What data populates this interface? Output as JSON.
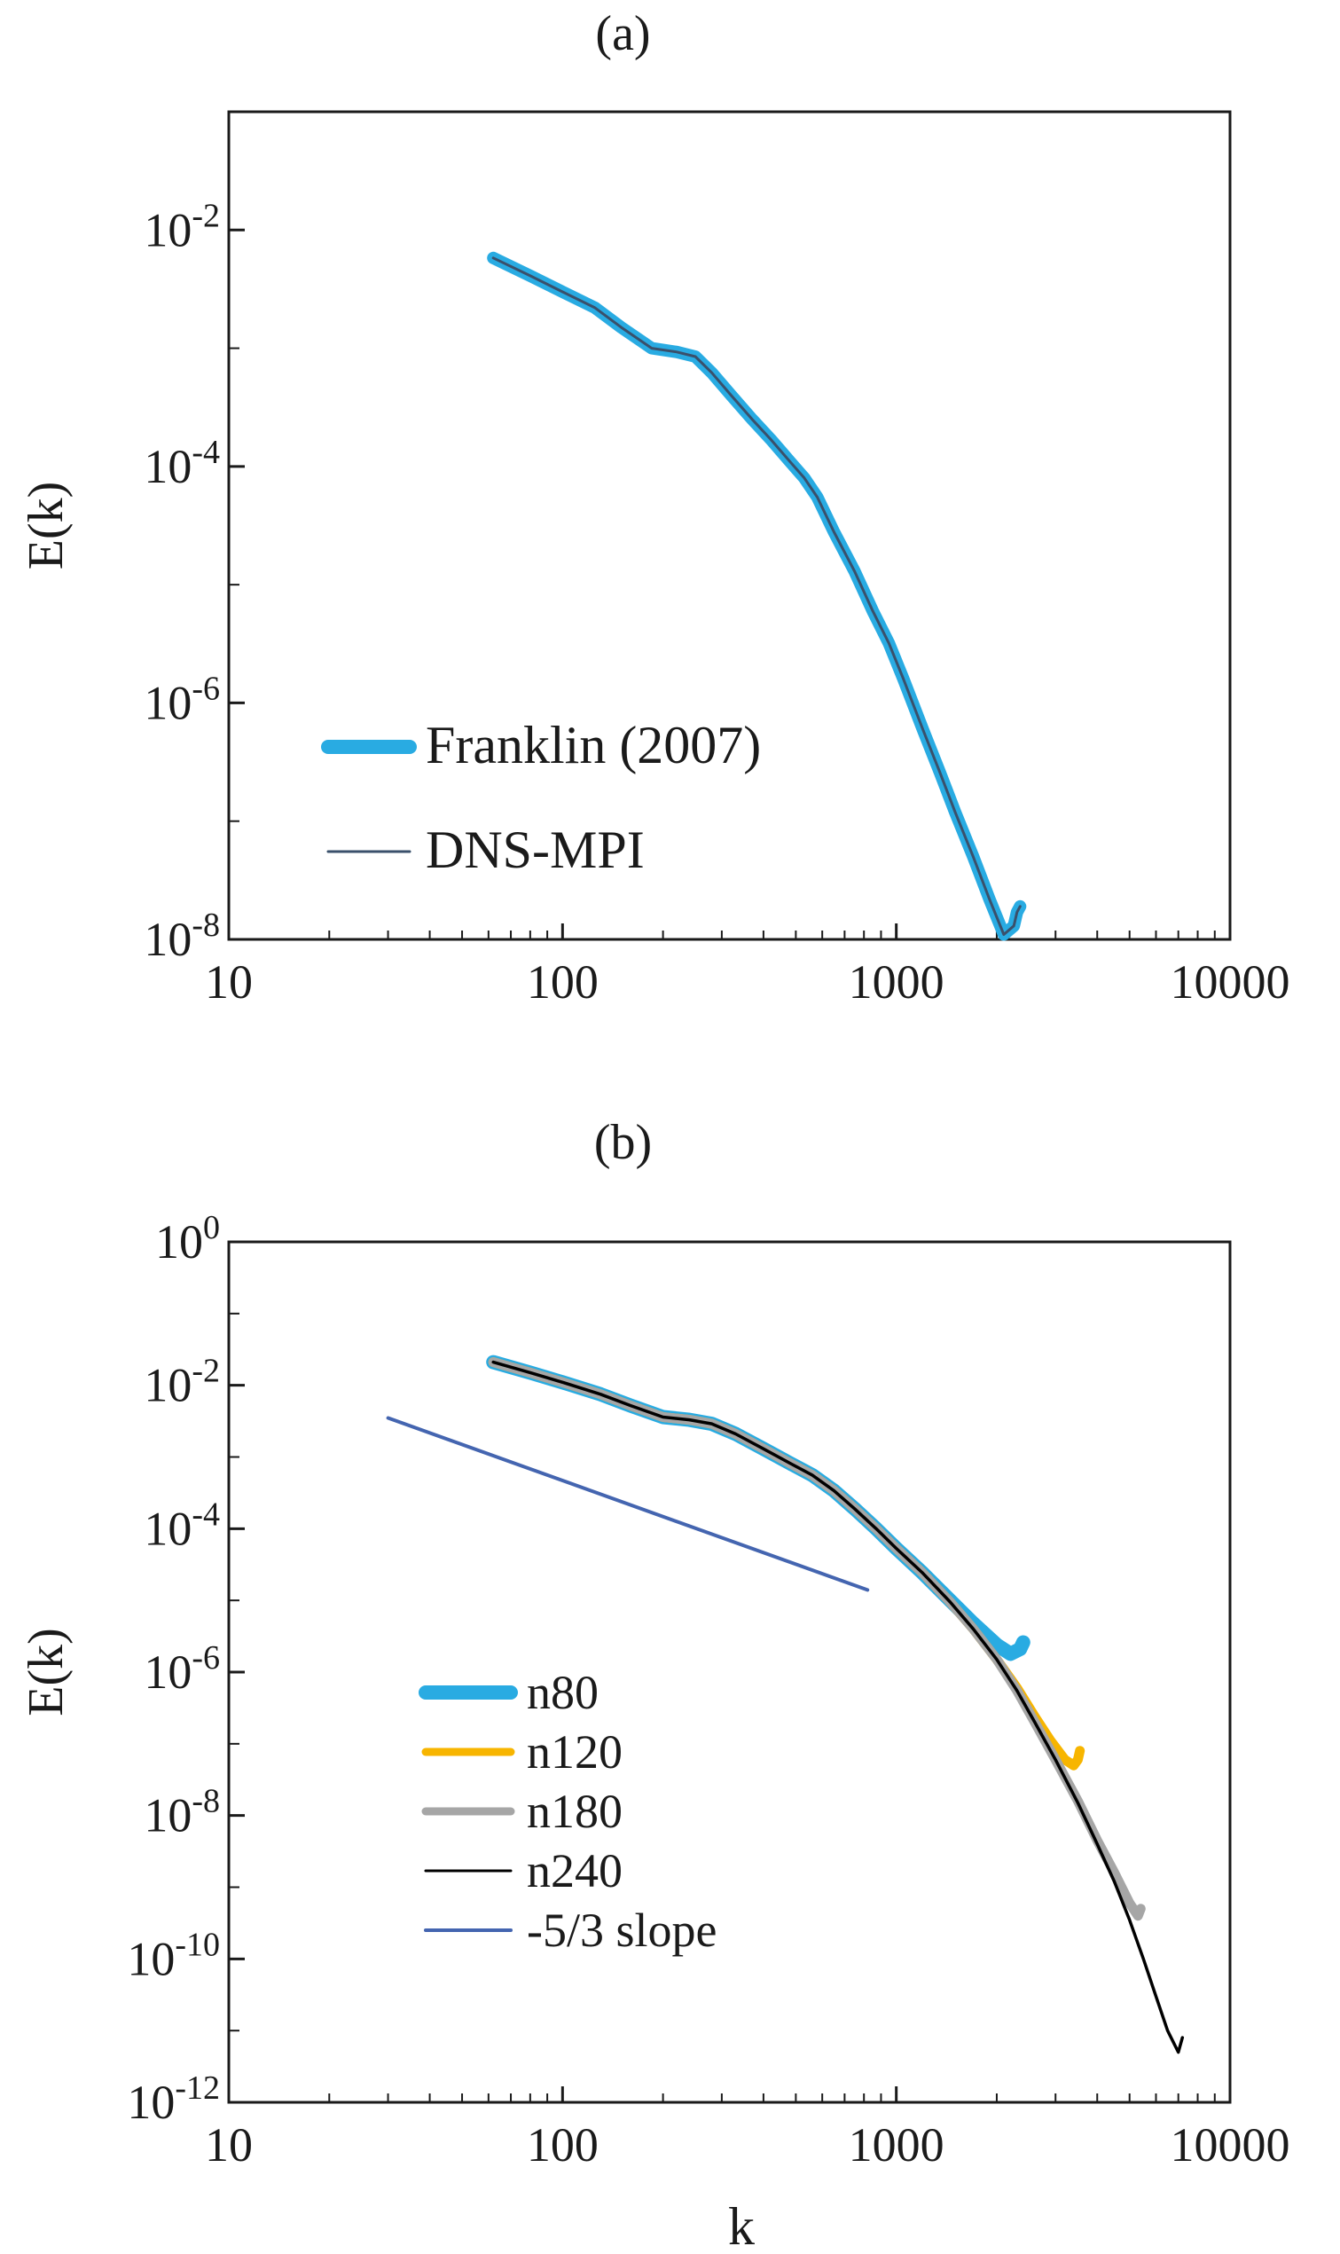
{
  "chart_data": [
    {
      "type": "line",
      "title": "(a)",
      "xlabel": "",
      "ylabel": "E(k)",
      "xscale": "log",
      "yscale": "log",
      "xlim": [
        10,
        10000
      ],
      "ylim": [
        1e-08,
        0.1
      ],
      "x_tick_labels": [
        "10",
        "100",
        "1000",
        "10000"
      ],
      "y_ticks": [
        {
          "base": "10",
          "exp": "-2"
        },
        {
          "base": "10",
          "exp": "-4"
        },
        {
          "base": "10",
          "exp": "-6"
        },
        {
          "base": "10",
          "exp": "-8"
        }
      ],
      "legend_placement": "lower-left",
      "series": [
        {
          "name": "Franklin (2007)",
          "color": "#29abe2",
          "x": [
            62,
            80,
            100,
            125,
            150,
            185,
            220,
            250,
            280,
            320,
            370,
            420,
            480,
            530,
            580,
            650,
            750,
            850,
            950,
            1050,
            1200,
            1350,
            1500,
            1700,
            1900,
            2100,
            2250,
            2300,
            2350
          ],
          "y": [
            0.0058,
            0.0041,
            0.003,
            0.0022,
            0.0015,
            0.001,
            0.00093,
            0.00085,
            0.00062,
            0.0004,
            0.00025,
            0.00017,
            0.00011,
            8e-05,
            5.5e-05,
            2.8e-05,
            1.3e-05,
            6e-06,
            3.2e-06,
            1.6e-06,
            6e-07,
            2.6e-07,
            1.2e-07,
            5e-08,
            2.2e-08,
            1.1e-08,
            1.3e-08,
            1.7e-08,
            1.9e-08
          ]
        },
        {
          "name": "DNS-MPI",
          "color": "#3a506b",
          "x": [
            62,
            80,
            100,
            125,
            150,
            185,
            220,
            250,
            280,
            320,
            370,
            420,
            480,
            530,
            580,
            650,
            750,
            850,
            950,
            1050,
            1200,
            1350,
            1500,
            1700,
            1900,
            2100,
            2250,
            2300,
            2350
          ],
          "y": [
            0.0058,
            0.0041,
            0.003,
            0.0022,
            0.0015,
            0.001,
            0.00093,
            0.00085,
            0.00062,
            0.0004,
            0.00025,
            0.00017,
            0.00011,
            8e-05,
            5.5e-05,
            2.8e-05,
            1.3e-05,
            6e-06,
            3.2e-06,
            1.6e-06,
            6e-07,
            2.6e-07,
            1.2e-07,
            5e-08,
            2.2e-08,
            1.1e-08,
            1.3e-08,
            1.7e-08,
            1.9e-08
          ]
        }
      ]
    },
    {
      "type": "line",
      "title": "(b)",
      "xlabel": "k",
      "ylabel": "E(k)",
      "xscale": "log",
      "yscale": "log",
      "xlim": [
        10,
        10000
      ],
      "ylim": [
        1e-12,
        1
      ],
      "x_tick_labels": [
        "10",
        "100",
        "1000",
        "10000"
      ],
      "y_ticks": [
        {
          "base": "10",
          "exp": "0"
        },
        {
          "base": "10",
          "exp": "-2"
        },
        {
          "base": "10",
          "exp": "-4"
        },
        {
          "base": "10",
          "exp": "-6"
        },
        {
          "base": "10",
          "exp": "-8"
        },
        {
          "base": "10",
          "exp": "-10"
        },
        {
          "base": "10",
          "exp": "-12"
        }
      ],
      "legend_placement": "lower-left",
      "series": [
        {
          "name": "n80",
          "color": "#29abe2",
          "x": [
            62,
            80,
            100,
            130,
            160,
            200,
            240,
            280,
            330,
            400,
            480,
            560,
            650,
            750,
            870,
            1000,
            1200,
            1450,
            1700,
            2000,
            2200,
            2350,
            2400
          ],
          "y": [
            0.021,
            0.015,
            0.011,
            0.0075,
            0.0052,
            0.0036,
            0.0033,
            0.0029,
            0.0021,
            0.0013,
            0.00082,
            0.00056,
            0.00034,
            0.00019,
            0.0001,
            5.3e-05,
            2.4e-05,
            1e-05,
            4.8e-06,
            2.4e-06,
            1.8e-06,
            2.1e-06,
            2.6e-06
          ]
        },
        {
          "name": "n120",
          "color": "#f7b500",
          "x": [
            62,
            80,
            100,
            130,
            160,
            200,
            240,
            280,
            330,
            400,
            480,
            560,
            650,
            750,
            870,
            1000,
            1200,
            1450,
            1700,
            2000,
            2300,
            2600,
            2900,
            3200,
            3400,
            3500,
            3550
          ],
          "y": [
            0.021,
            0.015,
            0.011,
            0.0075,
            0.0052,
            0.0036,
            0.0033,
            0.0029,
            0.0021,
            0.0013,
            0.00082,
            0.00056,
            0.00034,
            0.00019,
            0.0001,
            5.3e-05,
            2.4e-05,
            9.5e-06,
            4e-06,
            1.5e-06,
            6e-07,
            2.4e-07,
            1.1e-07,
            6e-08,
            5e-08,
            6e-08,
            8e-08
          ]
        },
        {
          "name": "n180",
          "color": "#a6a6a6",
          "x": [
            62,
            80,
            100,
            130,
            160,
            200,
            240,
            280,
            330,
            400,
            480,
            560,
            650,
            750,
            870,
            1000,
            1200,
            1450,
            1700,
            2000,
            2300,
            2600,
            3000,
            3500,
            4000,
            4500,
            5000,
            5300,
            5400
          ],
          "y": [
            0.021,
            0.015,
            0.011,
            0.0075,
            0.0052,
            0.0036,
            0.0033,
            0.0029,
            0.0021,
            0.0013,
            0.00082,
            0.00056,
            0.00034,
            0.00019,
            0.0001,
            5.3e-05,
            2.4e-05,
            9.5e-06,
            4e-06,
            1.5e-06,
            5.5e-07,
            2e-07,
            6e-08,
            1.6e-08,
            4.5e-09,
            1.6e-09,
            6e-10,
            4e-10,
            5e-10
          ]
        },
        {
          "name": "n240",
          "color": "#000000",
          "x": [
            62,
            80,
            100,
            130,
            160,
            200,
            240,
            280,
            330,
            400,
            480,
            560,
            650,
            750,
            870,
            1000,
            1200,
            1450,
            1700,
            2000,
            2300,
            2600,
            3000,
            3500,
            4000,
            4500,
            5000,
            5500,
            6000,
            6500,
            7000,
            7200
          ],
          "y": [
            0.021,
            0.015,
            0.011,
            0.0075,
            0.0052,
            0.0036,
            0.0033,
            0.0029,
            0.0021,
            0.0013,
            0.00082,
            0.00056,
            0.00034,
            0.00019,
            0.0001,
            5.3e-05,
            2.4e-05,
            9.5e-06,
            4e-06,
            1.5e-06,
            5.5e-07,
            2e-07,
            6e-08,
            1.5e-08,
            4e-09,
            1.2e-09,
            3.5e-10,
            1e-10,
            3e-11,
            1e-11,
            5e-12,
            8e-12
          ]
        },
        {
          "name": "-5/3 slope",
          "color": "#4465b0",
          "x": [
            30,
            820
          ],
          "y": [
            0.0035,
            1.4e-05
          ]
        }
      ]
    }
  ]
}
